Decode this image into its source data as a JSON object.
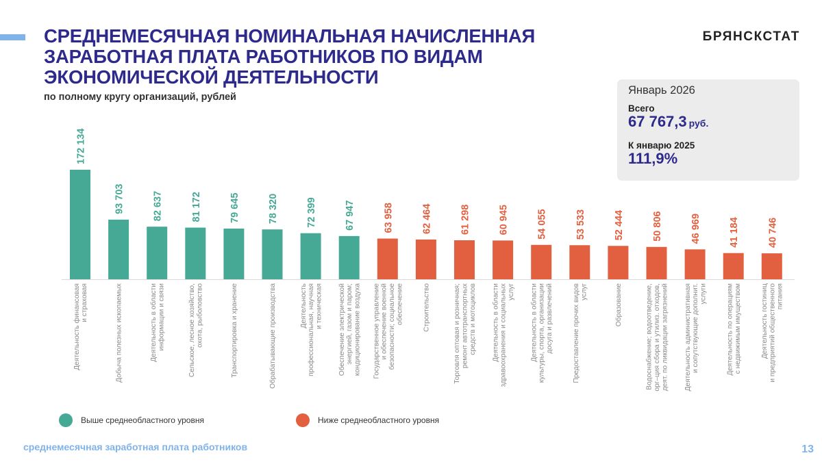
{
  "header": {
    "title_lines": [
      "СРЕДНЕМЕСЯЧНАЯ НОМИНАЛЬНАЯ НАЧИСЛЕННАЯ",
      "ЗАРАБОТНАЯ ПЛАТА РАБОТНИКОВ ПО ВИДАМ",
      "ЭКОНОМИЧЕСКОЙ ДЕЯТЕЛЬНОСТИ"
    ],
    "subtitle": "по полному кругу организаций, рублей",
    "brand": "БРЯНСКСТАТ"
  },
  "info_card": {
    "period": "Январь 2026",
    "total_label": "Всего",
    "total_value": "67 767,3",
    "total_unit": "руб.",
    "yoy_label": "К январю 2025",
    "yoy_value": "111,9%"
  },
  "legend": {
    "above": "Выше среднеобластного уровня",
    "below": "Ниже среднеобластного уровня"
  },
  "colors": {
    "above": "#45a996",
    "below": "#e2603f",
    "title": "#2e2a8c",
    "accent": "#7fb3ea"
  },
  "footer": {
    "text": "среднемесячная заработная плата работников",
    "page_number": "13"
  },
  "chart_data": {
    "type": "bar",
    "title": "Среднемесячная номинальная начисленная заработная плата работников по видам экономической деятельности",
    "subtitle": "по полному кругу организаций, рублей",
    "xlabel": "",
    "ylabel": "рублей",
    "ylim": [
      0,
      172134
    ],
    "grid": false,
    "legend_position": "bottom",
    "regional_average": 67767.3,
    "categories": [
      [
        "Деятельность финансовая",
        "и страховая"
      ],
      [
        "Добыча полезных ископаемых"
      ],
      [
        "Деятельность в области",
        "информации и связи"
      ],
      [
        "Сельское, лесное хозяйство,",
        "охота, рыболовство"
      ],
      [
        "Транспортировка и хранение"
      ],
      [
        "Обрабатывающие производства"
      ],
      [
        "Деятельность",
        "профессиональная, научная",
        "и техническая"
      ],
      [
        "Обеспечение электрической",
        "энергией, газом и паром;",
        "кондиционирование воздуха"
      ],
      [
        "Государственное  управление",
        "и обеспечение военной",
        "безопасности; социальное",
        "обеспечение"
      ],
      [
        "Строительство"
      ],
      [
        "Торговля оптовая и розничная;",
        "ремонт автотранспортных",
        "средств и мотоциклов"
      ],
      [
        "Деятельность в области",
        "здравоохранения и социальных",
        "услуг"
      ],
      [
        "Деятельность в области",
        "культуры, спорта, организации",
        "досуга и развлечений"
      ],
      [
        "Предоставление прочих видов",
        "услуг"
      ],
      [
        "Образование"
      ],
      [
        "Водоснабжение; водоотведение,",
        "орг–ция сбора и утилиз. отходов,",
        "деят. по ликвидации загрязнений"
      ],
      [
        "Деятельность административная",
        "и сопутствующие дополнит.",
        "услуги"
      ],
      [
        "Деятельность по операциям",
        "с недвижимым имуществом"
      ],
      [
        "Деятельность гостиниц",
        "и предприятий общественного",
        "питания"
      ]
    ],
    "values": [
      172134,
      93703,
      82637,
      81172,
      79645,
      78320,
      72399,
      67947,
      63958,
      62464,
      61298,
      60945,
      54055,
      53533,
      52444,
      50806,
      46969,
      41184,
      40746
    ],
    "value_labels": [
      "172 134",
      "93 703",
      "82 637",
      "81 172",
      "79 645",
      "78 320",
      "72 399",
      "67 947",
      "63 958",
      "62 464",
      "61 298",
      "60 945",
      "54 055",
      "53 533",
      "52 444",
      "50 806",
      "46 969",
      "41 184",
      "40 746"
    ],
    "groups": [
      "above",
      "above",
      "above",
      "above",
      "above",
      "above",
      "above",
      "above",
      "below",
      "below",
      "below",
      "below",
      "below",
      "below",
      "below",
      "below",
      "below",
      "below",
      "below"
    ]
  }
}
